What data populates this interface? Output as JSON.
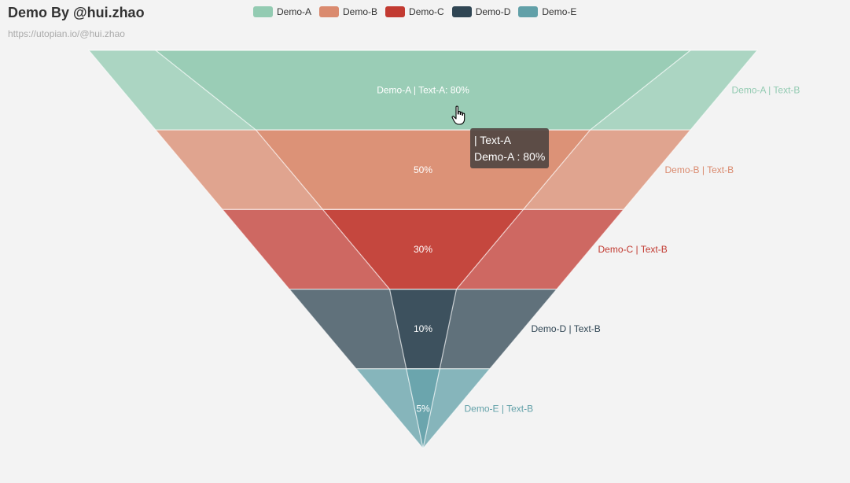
{
  "title": "Demo By @hui.zhao",
  "subtitle": "https://utopian.io/@hui.zhao",
  "legend": [
    {
      "name": "Demo-A",
      "color": "#93cbb2"
    },
    {
      "name": "Demo-B",
      "color": "#da8a6e"
    },
    {
      "name": "Demo-C",
      "color": "#c23a31"
    },
    {
      "name": "Demo-D",
      "color": "#2f4553"
    },
    {
      "name": "Demo-E",
      "color": "#61a0a8"
    }
  ],
  "chart_data": {
    "type": "funnel",
    "series": [
      {
        "name": "Text-B",
        "data": [
          {
            "name": "Demo-A",
            "value": 100,
            "label": "Demo-A | Text-B"
          },
          {
            "name": "Demo-B",
            "value": 80,
            "label": "Demo-B | Text-B"
          },
          {
            "name": "Demo-C",
            "value": 60,
            "label": "Demo-C | Text-B"
          },
          {
            "name": "Demo-D",
            "value": 40,
            "label": "Demo-D | Text-B"
          },
          {
            "name": "Demo-E",
            "value": 20,
            "label": "Demo-E | Text-B"
          }
        ]
      },
      {
        "name": "Text-A",
        "data": [
          {
            "name": "Demo-A",
            "value": 80,
            "label": "Demo-A | Text-A: 80%"
          },
          {
            "name": "Demo-B",
            "value": 50,
            "label": "50%"
          },
          {
            "name": "Demo-C",
            "value": 30,
            "label": "30%"
          },
          {
            "name": "Demo-D",
            "value": 10,
            "label": "10%"
          },
          {
            "name": "Demo-E",
            "value": 5,
            "label": "5%"
          }
        ]
      }
    ]
  },
  "tooltip": {
    "line1": "| Text-A",
    "line2": "Demo-A : 80%"
  }
}
